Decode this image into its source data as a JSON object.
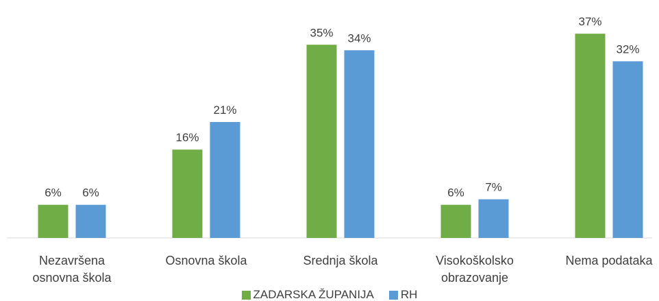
{
  "chart_data": {
    "type": "bar",
    "categories": [
      "Nezavršena osnovna škola",
      "Osnovna škola",
      "Srednja škola",
      "Visokoškolsko obrazovanje",
      "Nema podataka"
    ],
    "series": [
      {
        "name": "ZADARSKA ŽUPANIJA",
        "color": "#70ad47",
        "values": [
          6,
          16,
          35,
          6,
          37
        ],
        "value_labels": [
          "6%",
          "16%",
          "35%",
          "6%",
          "37%"
        ]
      },
      {
        "name": "RH",
        "color": "#5b9bd5",
        "values": [
          6,
          21,
          34,
          7,
          32
        ],
        "value_labels": [
          "6%",
          "21%",
          "34%",
          "7%",
          "32%"
        ]
      }
    ],
    "legend": "bottom"
  }
}
